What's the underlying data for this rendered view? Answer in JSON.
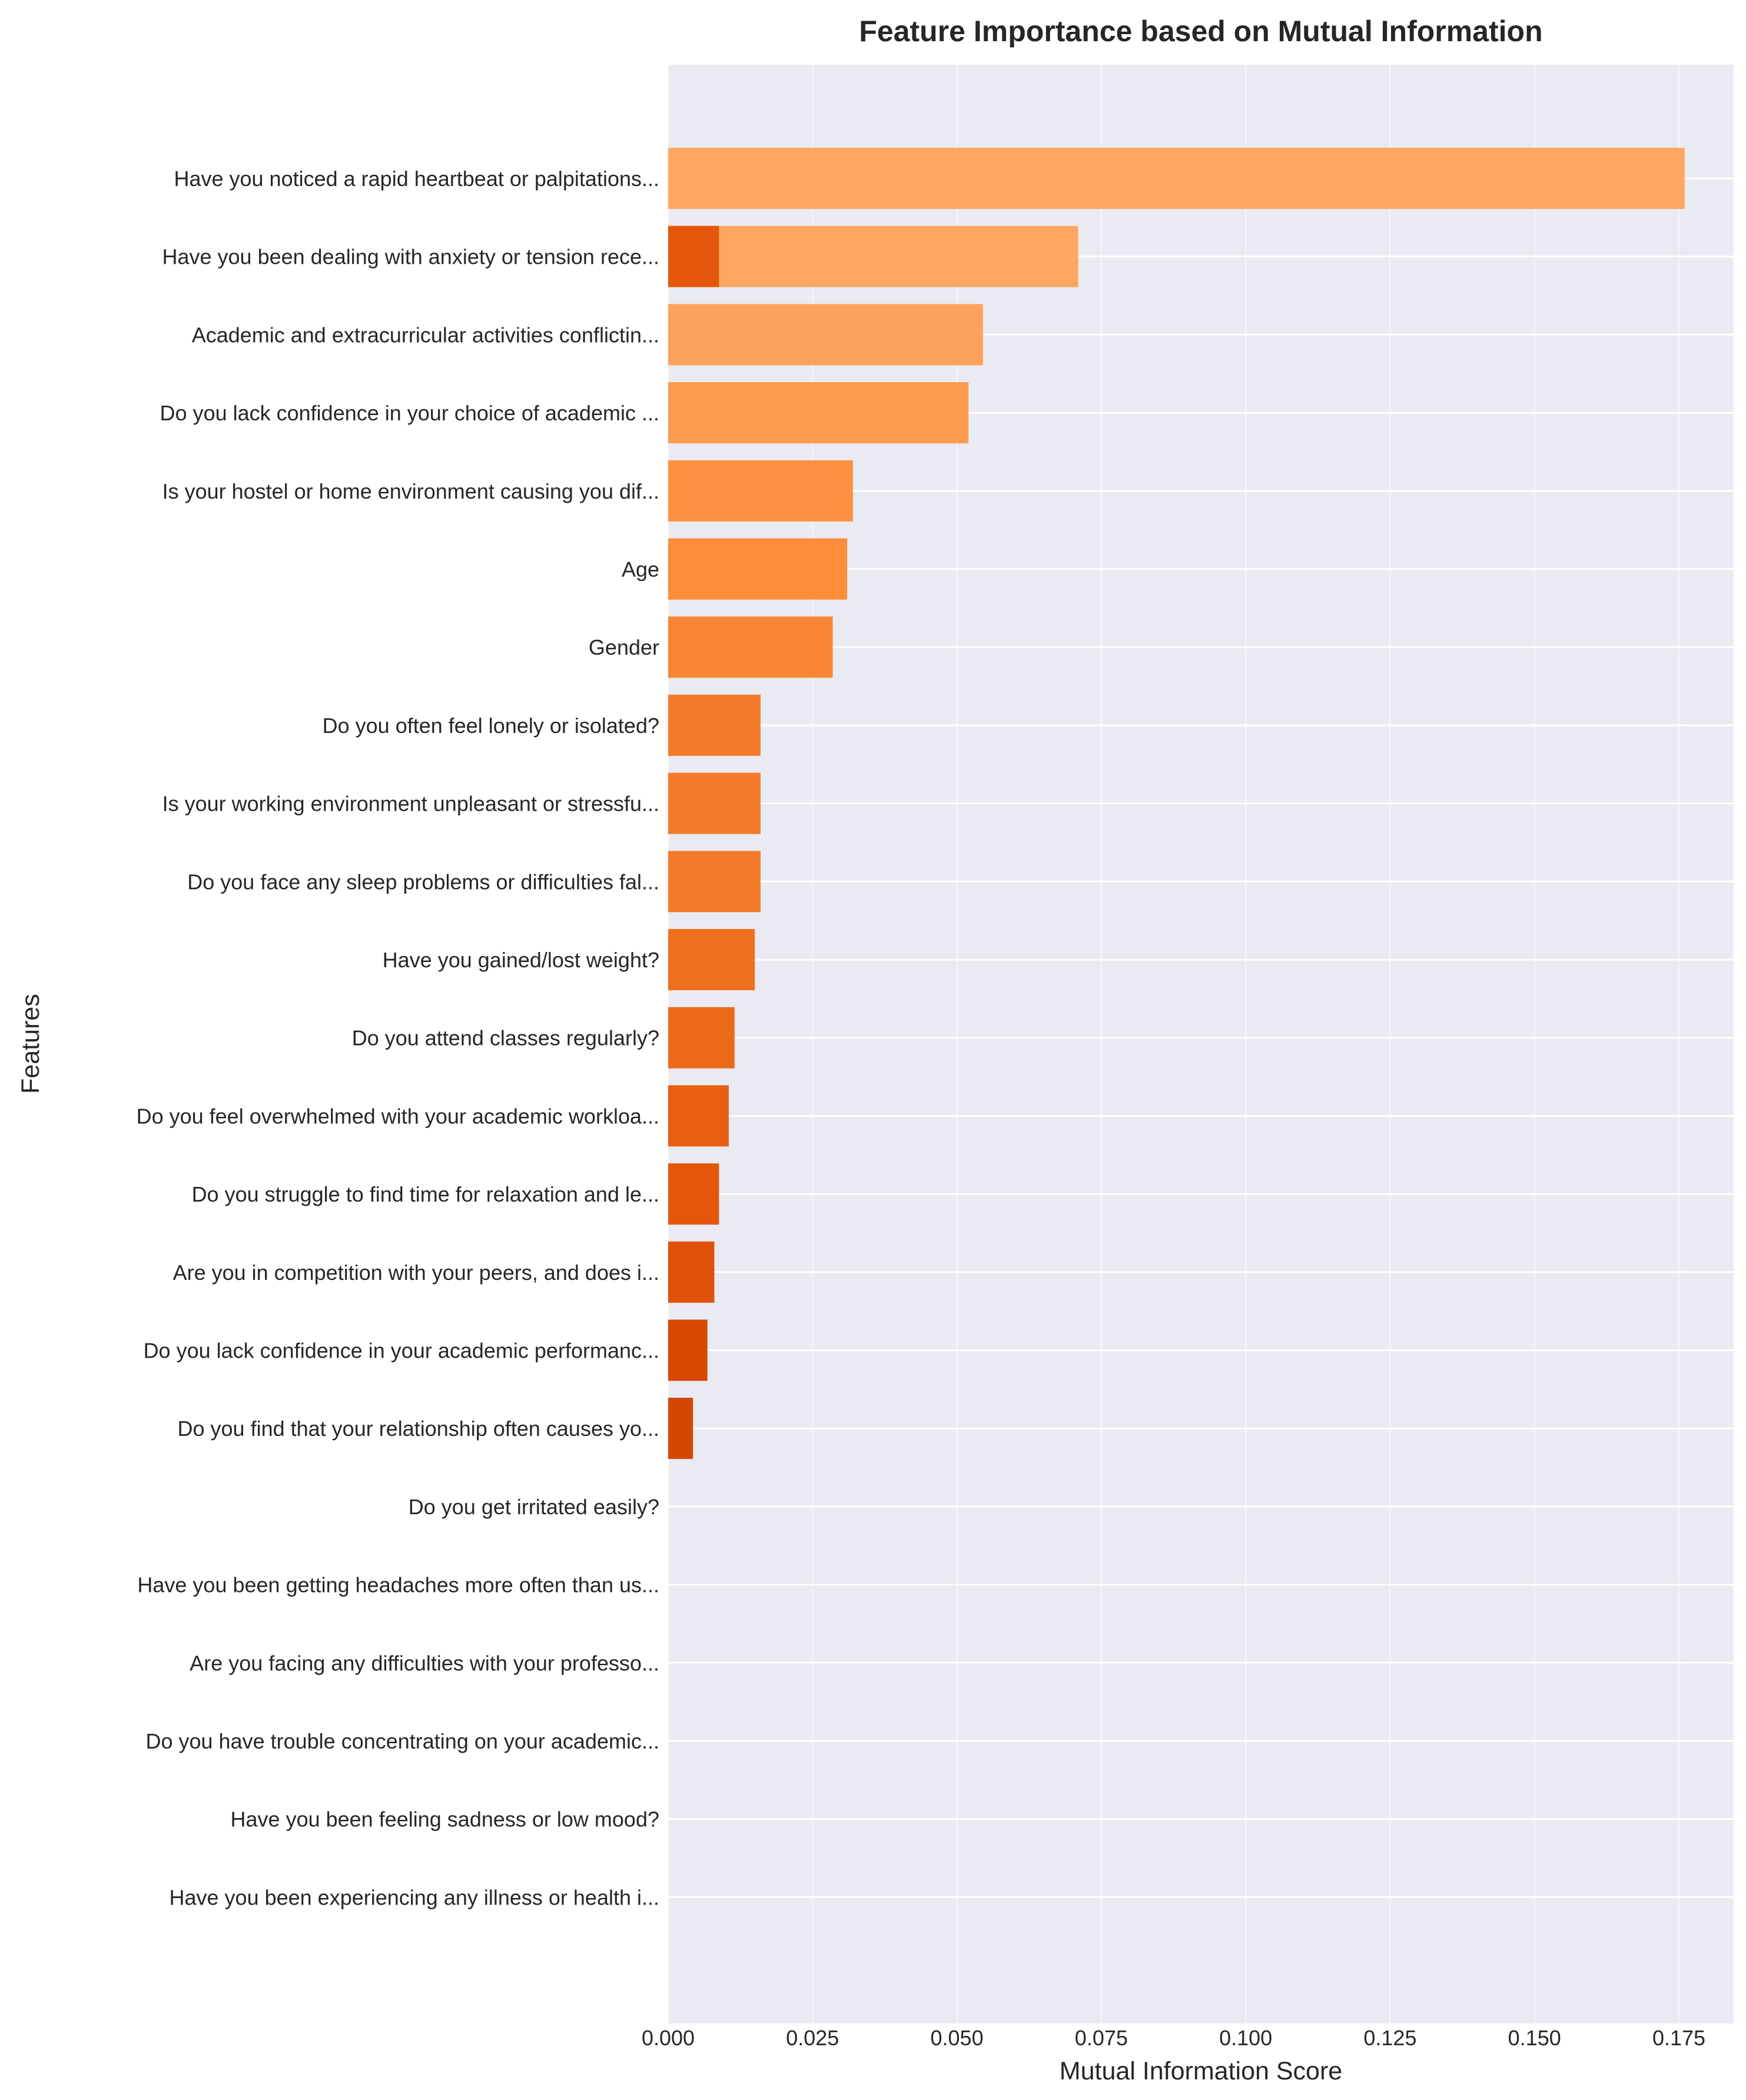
{
  "chart_data": {
    "type": "bar",
    "orientation": "horizontal",
    "title": "Feature Importance based on Mutual Information",
    "xlabel": "Mutual Information Score",
    "ylabel": "Features",
    "xlim": [
      0.0,
      0.185
    ],
    "xticks": [
      "0.000",
      "0.025",
      "0.050",
      "0.075",
      "0.100",
      "0.125",
      "0.150",
      "0.175"
    ],
    "grid": true,
    "legend": "none",
    "colormap": "Oranges",
    "categories": [
      "Have you noticed a rapid heartbeat or palpitations...",
      "Have you been dealing with anxiety or tension rece...",
      "Academic and extracurricular activities conflictin...",
      "Do you lack confidence in your choice of academic ...",
      "Is your hostel or home environment causing you dif...",
      "Age",
      "Gender",
      "Do you often feel lonely or isolated?",
      "Is your working environment unpleasant or stressfu...",
      "Do you face any sleep problems or difficulties fal...",
      "Have you gained/lost weight?",
      "Do you attend classes regularly?",
      "Do you feel overwhelmed with your academic workloa...",
      "Do you struggle to find time for relaxation and le...",
      "Are you in competition with your peers, and does i...",
      "Do you lack confidence in your academic performanc...",
      "Do you find that your relationship often causes yo...",
      "Do you get irritated easily?",
      "Have you been getting headaches more often than us...",
      "Are you facing any difficulties with your professo...",
      "Do you have trouble concentrating on your academic...",
      "Have you been feeling sadness or low mood?",
      "Have you been experiencing any illness or health i..."
    ],
    "values": [
      0.176,
      0.071,
      0.0545,
      0.052,
      0.032,
      0.031,
      0.0285,
      0.016,
      0.016,
      0.016,
      0.015,
      0.0115,
      0.0105,
      0.0088,
      0.008,
      0.0068,
      0.0043,
      0,
      0,
      0,
      0,
      0,
      0
    ],
    "colors": [
      "#fda762",
      "#fda762",
      "#fda25a",
      "#fd9b50",
      "#fd9141",
      "#fd8c3b",
      "#f98636",
      "#f47b2a",
      "#f47b2a",
      "#f47b2a",
      "#f06f1d",
      "#ec6a17",
      "#e95f11",
      "#e4570b",
      "#df5109",
      "#d94801",
      "#d44702",
      "#c74102",
      "#c03e02",
      "#b83a03",
      "#af3603",
      "#a73204",
      "#9e2f04"
    ],
    "overlay_segments": [
      {
        "category": "Have you been dealing with anxiety or tension rece...",
        "value": 0.0088,
        "color": "#e4570b"
      }
    ]
  }
}
